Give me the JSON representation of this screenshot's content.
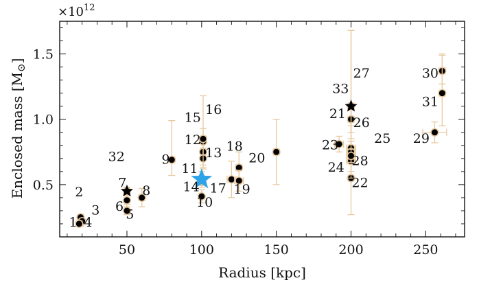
{
  "chart_data": {
    "type": "scatter",
    "xlabel": "Radius [kpc]",
    "ylabel": "Enclosed mass [M",
    "ylabel_symbol": "⊙",
    "ylabel_close": "]",
    "y_multiplier_base": "×10",
    "y_multiplier_exp": "12",
    "xlim": [
      5,
      276
    ],
    "ylim": [
      0.1,
      1.75
    ],
    "xticks": [
      50,
      100,
      150,
      200,
      250
    ],
    "yticks": [
      0.5,
      1.0,
      1.5
    ],
    "xtick_labels": [
      "50",
      "100",
      "150",
      "200",
      "250"
    ],
    "ytick_labels": [
      "0.5",
      "1.0",
      "1.5"
    ],
    "grid": false,
    "colors": {
      "error_bar": "#e8c9a0",
      "marker_fill": "#000000",
      "marker_edge": "#e8c9a0",
      "star_highlight": "#2ea3e8",
      "star_black": "#000000"
    },
    "points": [
      {
        "id": "1",
        "x": 19,
        "y": 0.21,
        "xerr": 2,
        "yerr_low": 0.03,
        "yerr_high": 0.03
      },
      {
        "id": "2",
        "x": 19,
        "y": 0.25,
        "xerr": 2,
        "yerr_low": 0.02,
        "yerr_high": 0.02
      },
      {
        "id": "3",
        "x": 20,
        "y": 0.22,
        "xerr": 1,
        "yerr_low": 0.02,
        "yerr_high": 0.02
      },
      {
        "id": "4",
        "x": 18,
        "y": 0.2,
        "xerr": 2,
        "yerr_low": 0.02,
        "yerr_high": 0.02
      },
      {
        "id": "5",
        "x": 50,
        "y": 0.3,
        "xerr": 1,
        "yerr_low": 0.03,
        "yerr_high": 0.05
      },
      {
        "id": "6",
        "x": 50,
        "y": 0.38,
        "xerr": 1,
        "yerr_low": 0.05,
        "yerr_high": 0.06
      },
      {
        "id": "7",
        "x": 50,
        "y": 0.45,
        "xerr": 1,
        "yerr_low": 0.03,
        "yerr_high": 0.03
      },
      {
        "id": "8",
        "x": 60,
        "y": 0.4,
        "xerr": 2,
        "yerr_low": 0.07,
        "yerr_high": 0.07
      },
      {
        "id": "9",
        "x": 80,
        "y": 0.69,
        "xerr": 2,
        "yerr_low": 0.12,
        "yerr_high": 0.3
      },
      {
        "id": "10",
        "x": 100,
        "y": 0.41,
        "xerr": 1,
        "yerr_low": 0.05,
        "yerr_high": 0.05
      },
      {
        "id": "11",
        "x": 100,
        "y": 0.52,
        "xerr": 1,
        "yerr_low": 0.04,
        "yerr_high": 0.04
      },
      {
        "id": "12",
        "x": 101,
        "y": 0.75,
        "xerr": 1,
        "yerr_low": 0.12,
        "yerr_high": 0.12
      },
      {
        "id": "13",
        "x": 101,
        "y": 0.7,
        "xerr": 1,
        "yerr_low": 0.08,
        "yerr_high": 0.08
      },
      {
        "id": "14",
        "x": 100,
        "y": 0.55,
        "xerr": 1,
        "yerr_low": 0.05,
        "yerr_high": 0.05
      },
      {
        "id": "15",
        "x": 101,
        "y": 0.83,
        "xerr": 1,
        "yerr_low": 0.1,
        "yerr_high": 0.1
      },
      {
        "id": "16",
        "x": 101,
        "y": 0.85,
        "xerr": 1,
        "yerr_low": 0.2,
        "yerr_high": 0.33
      },
      {
        "id": "17",
        "x": 120,
        "y": 0.54,
        "xerr": 3,
        "yerr_low": 0.14,
        "yerr_high": 0.14
      },
      {
        "id": "18",
        "x": 125,
        "y": 0.63,
        "xerr": 2,
        "yerr_low": 0.12,
        "yerr_high": 0.12
      },
      {
        "id": "19",
        "x": 125,
        "y": 0.53,
        "xerr": 3,
        "yerr_low": 0.08,
        "yerr_high": 0.08
      },
      {
        "id": "20",
        "x": 150,
        "y": 0.75,
        "xerr": 2,
        "yerr_low": 0.25,
        "yerr_high": 0.25
      },
      {
        "id": "21",
        "x": 200,
        "y": 1.0,
        "xerr": 2,
        "yerr_low": 0.1,
        "yerr_high": 0.1
      },
      {
        "id": "22",
        "x": 200,
        "y": 0.55,
        "xerr": 2,
        "yerr_low": 0.28,
        "yerr_high": 0.28
      },
      {
        "id": "23",
        "x": 192,
        "y": 0.81,
        "xerr": 3,
        "yerr_low": 0.06,
        "yerr_high": 0.06
      },
      {
        "id": "24",
        "x": 200,
        "y": 0.68,
        "xerr": 3,
        "yerr_low": 0.08,
        "yerr_high": 0.08
      },
      {
        "id": "25",
        "x": 200,
        "y": 0.78,
        "xerr": 3,
        "yerr_low": 0.05,
        "yerr_high": 0.05
      },
      {
        "id": "26",
        "x": 200,
        "y": 0.75,
        "xerr": 3,
        "yerr_low": 0.2,
        "yerr_high": 0.2
      },
      {
        "id": "27",
        "x": 200,
        "y": 1.1,
        "xerr": 2,
        "yerr_low": 0.25,
        "yerr_high": 0.58
      },
      {
        "id": "28",
        "x": 200,
        "y": 0.72,
        "xerr": 3,
        "yerr_low": 0.05,
        "yerr_high": 0.05
      },
      {
        "id": "29",
        "x": 256,
        "y": 0.9,
        "xerr": 8,
        "yerr_low": 0.08,
        "yerr_high": 0.08
      },
      {
        "id": "30",
        "x": 261,
        "y": 1.37,
        "xerr": 2,
        "yerr_low": 0.1,
        "yerr_high": 0.12
      },
      {
        "id": "31",
        "x": 261,
        "y": 1.2,
        "xerr": 2,
        "yerr_low": 0.25,
        "yerr_high": 0.3
      },
      {
        "id": "32",
        "x": 50,
        "y": 0.45,
        "xerr": 1,
        "yerr_low": 0.03,
        "yerr_high": 0.03
      },
      {
        "id": "33",
        "x": 200,
        "y": 1.1,
        "xerr": 2,
        "yerr_low": 0.25,
        "yerr_high": 0.58
      }
    ],
    "highlighted_points": [
      {
        "marker": "star-blue",
        "x": 100,
        "y": 0.54
      },
      {
        "marker": "star-black",
        "x": 50,
        "y": 0.45
      },
      {
        "marker": "star-black",
        "x": 200,
        "y": 1.1
      }
    ],
    "annotations": [
      {
        "text": "1",
        "x": 14,
        "y": 0.18
      },
      {
        "text": "2",
        "x": 18,
        "y": 0.41
      },
      {
        "text": "3",
        "x": 29,
        "y": 0.27
      },
      {
        "text": "4",
        "x": 24,
        "y": 0.18
      },
      {
        "text": "5",
        "x": 52,
        "y": 0.24
      },
      {
        "text": "6",
        "x": 45,
        "y": 0.3
      },
      {
        "text": "7",
        "x": 47,
        "y": 0.48
      },
      {
        "text": "8",
        "x": 63,
        "y": 0.42
      },
      {
        "text": "9",
        "x": 76,
        "y": 0.66
      },
      {
        "text": "10",
        "x": 102,
        "y": 0.33
      },
      {
        "text": "11",
        "x": 92,
        "y": 0.59
      },
      {
        "text": "12",
        "x": 94,
        "y": 0.81
      },
      {
        "text": "13",
        "x": 108,
        "y": 0.71
      },
      {
        "text": "14",
        "x": 93,
        "y": 0.45
      },
      {
        "text": "15",
        "x": 94,
        "y": 0.98
      },
      {
        "text": "16",
        "x": 108,
        "y": 1.04
      },
      {
        "text": "17",
        "x": 111,
        "y": 0.44
      },
      {
        "text": "18",
        "x": 122,
        "y": 0.76
      },
      {
        "text": "19",
        "x": 127,
        "y": 0.43
      },
      {
        "text": "20",
        "x": 137,
        "y": 0.67
      },
      {
        "text": "21",
        "x": 191,
        "y": 1.01
      },
      {
        "text": "22",
        "x": 206,
        "y": 0.48
      },
      {
        "text": "23",
        "x": 186,
        "y": 0.77
      },
      {
        "text": "24",
        "x": 190,
        "y": 0.6
      },
      {
        "text": "25",
        "x": 221,
        "y": 0.82
      },
      {
        "text": "26",
        "x": 207,
        "y": 0.94
      },
      {
        "text": "27",
        "x": 207,
        "y": 1.32
      },
      {
        "text": "28",
        "x": 206,
        "y": 0.65
      },
      {
        "text": "29",
        "x": 247,
        "y": 0.82
      },
      {
        "text": "30",
        "x": 253,
        "y": 1.32
      },
      {
        "text": "31",
        "x": 253,
        "y": 1.1
      },
      {
        "text": "32",
        "x": 43,
        "y": 0.68
      },
      {
        "text": "33",
        "x": 193,
        "y": 1.2
      }
    ]
  }
}
